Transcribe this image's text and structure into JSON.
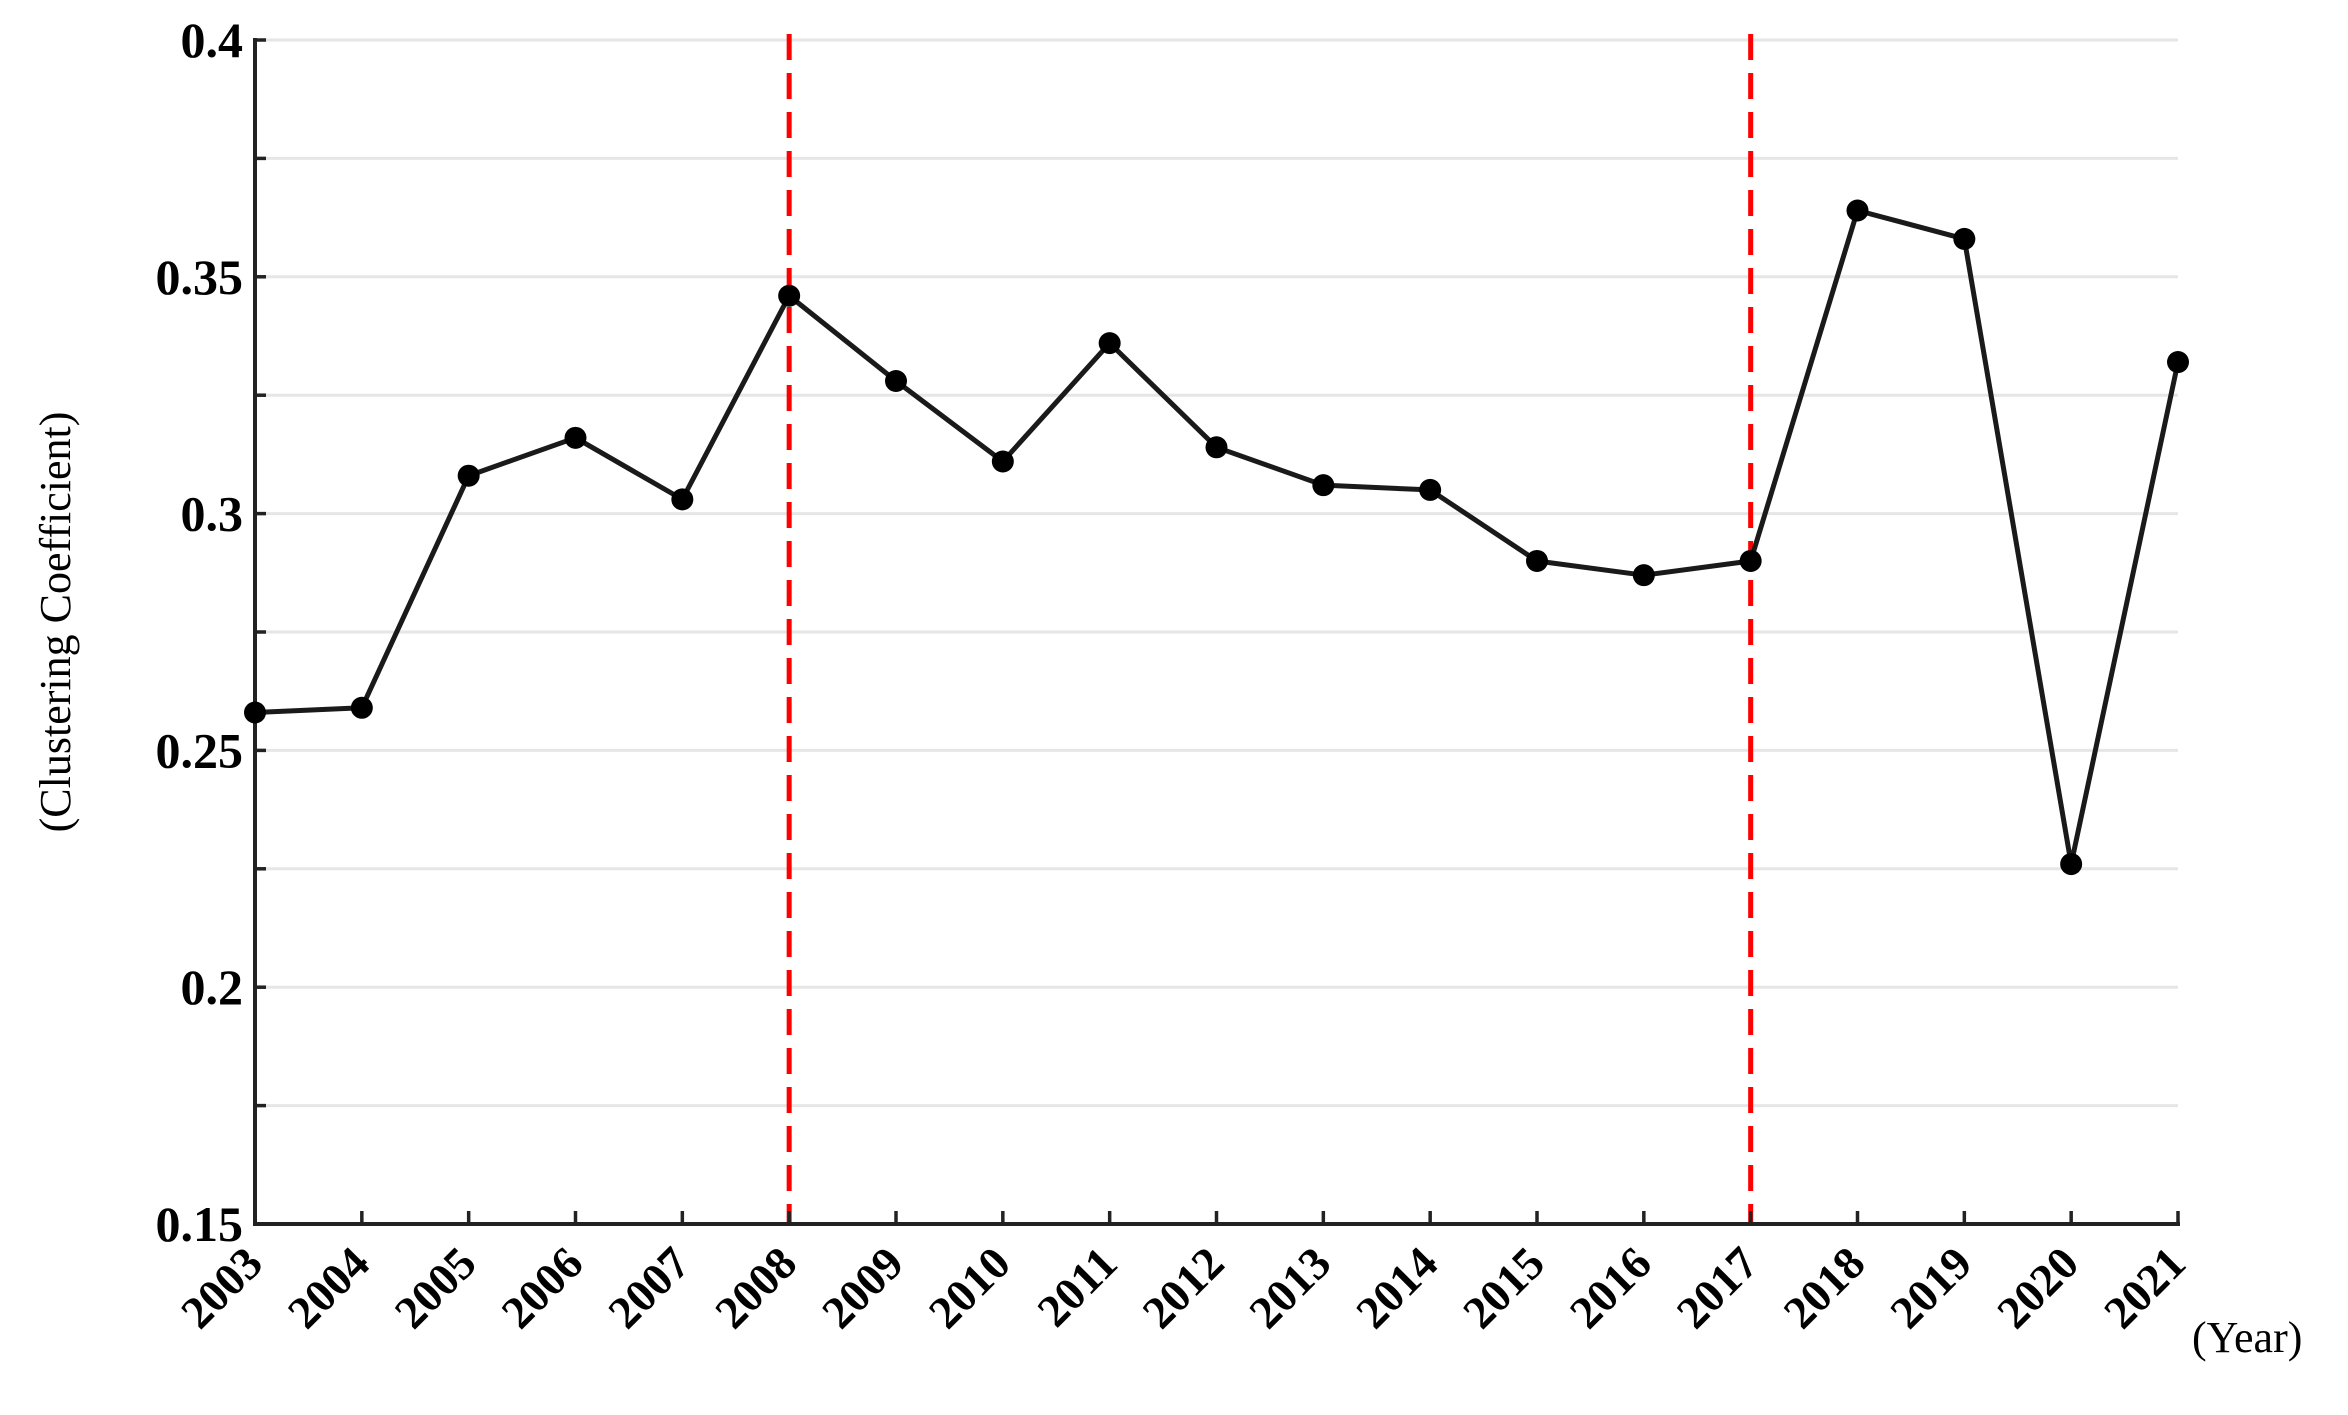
{
  "chart_data": {
    "type": "line",
    "title": "",
    "xlabel": "(Year)",
    "ylabel": "(Clustering Coefficient)",
    "categories": [
      "2003",
      "2004",
      "2005",
      "2006",
      "2007",
      "2008",
      "2009",
      "2010",
      "2011",
      "2012",
      "2013",
      "2014",
      "2015",
      "2016",
      "2017",
      "2018",
      "2019",
      "2020",
      "2021"
    ],
    "series": [
      {
        "values": [
          0.258,
          0.259,
          0.308,
          0.316,
          0.303,
          0.346,
          0.328,
          0.311,
          0.336,
          0.314,
          0.306,
          0.305,
          0.29,
          0.287,
          0.29,
          0.364,
          0.358,
          0.226,
          0.332
        ]
      }
    ],
    "ylim": [
      0.15,
      0.4
    ],
    "yticks": [
      "0.15",
      "0.2",
      "0.25",
      "0.3",
      "0.35",
      "0.4"
    ],
    "y_minor_step": 0.025,
    "grid": true,
    "reference_lines": [
      {
        "x": "2008",
        "style": "dashed",
        "color": "#ff0000"
      },
      {
        "x": "2017",
        "style": "dashed",
        "color": "#ff0000"
      }
    ],
    "colors": {
      "line": "#1a1a1a",
      "marker": "#000000",
      "grid": "#e6e6e6",
      "reference": "#ff0000"
    }
  }
}
